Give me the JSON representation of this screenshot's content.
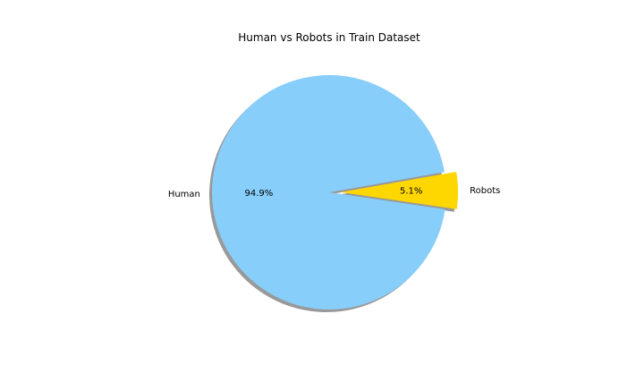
{
  "chart_data": {
    "type": "pie",
    "title": "Human vs Robots in Train Dataset",
    "slices": [
      {
        "label": "Human",
        "value": 94.9,
        "pct_label": "94.9%",
        "color": "#87cefa",
        "exploded": false
      },
      {
        "label": "Robots",
        "value": 5.1,
        "pct_label": "5.1%",
        "color": "#ffd700",
        "exploded": true
      }
    ],
    "start_angle_deg": 10,
    "shadow": true,
    "legend": "none"
  }
}
